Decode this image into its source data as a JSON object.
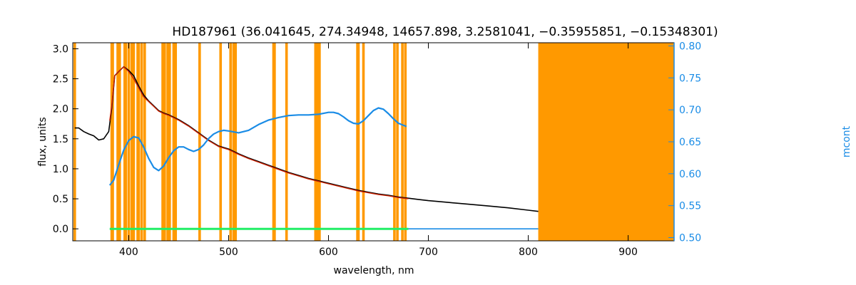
{
  "chart_data": {
    "type": "line",
    "title": "HD187961    (36.041645, 274.34948, 14657.898, 3.2581041, −0.35955851, −0.15348301)",
    "xlabel": "wavelength, nm",
    "ylabel": "flux, units",
    "ylabel_right": "mcont",
    "xlim": [
      344,
      946
    ],
    "ylim": [
      -0.2,
      3.1
    ],
    "ylim_right": [
      0.495,
      0.805
    ],
    "x_ticks": [
      400,
      500,
      600,
      700,
      800,
      900
    ],
    "y_ticks": [
      "0.0",
      "0.5",
      "1.0",
      "1.5",
      "2.0",
      "2.5",
      "3.0"
    ],
    "y_ticks_right": [
      "0.50",
      "0.55",
      "0.60",
      "0.65",
      "0.70",
      "0.75",
      "0.80"
    ],
    "colors": {
      "observed": "#000000",
      "model": "#cc2200",
      "residual": "#22ee66",
      "continuum": "#1a8ce6",
      "mask": "#ff9900",
      "axis_right": "#1a8ce6"
    },
    "masked_lines_nm": [
      346,
      383,
      384,
      389,
      391,
      396,
      397,
      400,
      403,
      405,
      409,
      410,
      413,
      416,
      434,
      436,
      439,
      441,
      445,
      447,
      471,
      492,
      502,
      505,
      507,
      545,
      546,
      558,
      587,
      588,
      590,
      591,
      629,
      630,
      635,
      666,
      669,
      674,
      677
    ],
    "masked_band_nm": [
      810,
      946
    ],
    "series": [
      {
        "type": "line",
        "x": [
          346,
          350,
          355,
          360,
          365,
          370,
          375,
          380,
          383,
          386,
          390,
          395,
          400,
          405,
          410,
          415,
          420,
          425,
          430,
          435,
          440,
          445,
          450,
          460,
          470,
          480,
          490,
          500,
          510,
          520,
          530,
          540,
          550,
          560,
          570,
          580,
          590,
          600,
          610,
          620,
          630,
          640,
          650,
          660,
          670,
          680,
          690,
          700,
          720,
          740,
          760,
          780,
          800,
          810
        ],
        "y": [
          1.68,
          1.68,
          1.62,
          1.58,
          1.55,
          1.48,
          1.5,
          1.62,
          2.0,
          2.55,
          2.62,
          2.7,
          2.64,
          2.55,
          2.38,
          2.23,
          2.13,
          2.05,
          1.97,
          1.93,
          1.9,
          1.86,
          1.82,
          1.72,
          1.6,
          1.48,
          1.38,
          1.33,
          1.25,
          1.18,
          1.12,
          1.06,
          1.0,
          0.94,
          0.89,
          0.84,
          0.8,
          0.76,
          0.72,
          0.68,
          0.64,
          0.61,
          0.58,
          0.56,
          0.53,
          0.51,
          0.49,
          0.47,
          0.44,
          0.41,
          0.38,
          0.35,
          0.31,
          0.29
        ]
      },
      {
        "type": "line",
        "x": [
          381,
          383,
          386,
          390,
          395,
          400,
          405,
          410,
          415,
          420,
          425,
          430,
          435,
          440,
          445,
          450,
          460,
          470,
          480,
          490,
          500,
          510,
          520,
          530,
          540,
          550,
          560,
          570,
          580,
          590,
          600,
          610,
          620,
          630,
          640,
          650,
          660,
          670,
          680
        ],
        "y": [
          1.8,
          2.05,
          2.55,
          2.62,
          2.7,
          2.62,
          2.5,
          2.35,
          2.2,
          2.12,
          2.04,
          1.96,
          1.92,
          1.89,
          1.85,
          1.81,
          1.71,
          1.59,
          1.47,
          1.37,
          1.32,
          1.24,
          1.17,
          1.11,
          1.05,
          0.99,
          0.93,
          0.88,
          0.83,
          0.79,
          0.75,
          0.71,
          0.67,
          0.63,
          0.6,
          0.57,
          0.55,
          0.52,
          0.5
        ]
      },
      {
        "type": "line",
        "axis": "right",
        "x": [
          381,
          385,
          390,
          395,
          400,
          405,
          410,
          415,
          420,
          425,
          430,
          435,
          440,
          445,
          450,
          455,
          460,
          465,
          470,
          475,
          480,
          485,
          490,
          495,
          500,
          510,
          520,
          530,
          540,
          550,
          560,
          570,
          580,
          590,
          600,
          605,
          610,
          615,
          620,
          625,
          630,
          635,
          640,
          645,
          650,
          655,
          660,
          665,
          670,
          678
        ],
        "y": [
          0.582,
          0.59,
          0.614,
          0.637,
          0.652,
          0.658,
          0.656,
          0.642,
          0.624,
          0.61,
          0.605,
          0.612,
          0.625,
          0.636,
          0.642,
          0.642,
          0.638,
          0.635,
          0.638,
          0.645,
          0.655,
          0.662,
          0.666,
          0.668,
          0.667,
          0.664,
          0.668,
          0.677,
          0.684,
          0.688,
          0.691,
          0.692,
          0.692,
          0.693,
          0.696,
          0.696,
          0.694,
          0.689,
          0.683,
          0.679,
          0.678,
          0.683,
          0.691,
          0.699,
          0.703,
          0.701,
          0.694,
          0.686,
          0.679,
          0.674
        ]
      },
      {
        "type": "line",
        "x": [
          381,
          680
        ],
        "y": [
          0.0,
          0.0
        ]
      },
      {
        "type": "line",
        "x": [
          680,
          810
        ],
        "y": [
          0.0,
          0.0
        ]
      }
    ]
  }
}
